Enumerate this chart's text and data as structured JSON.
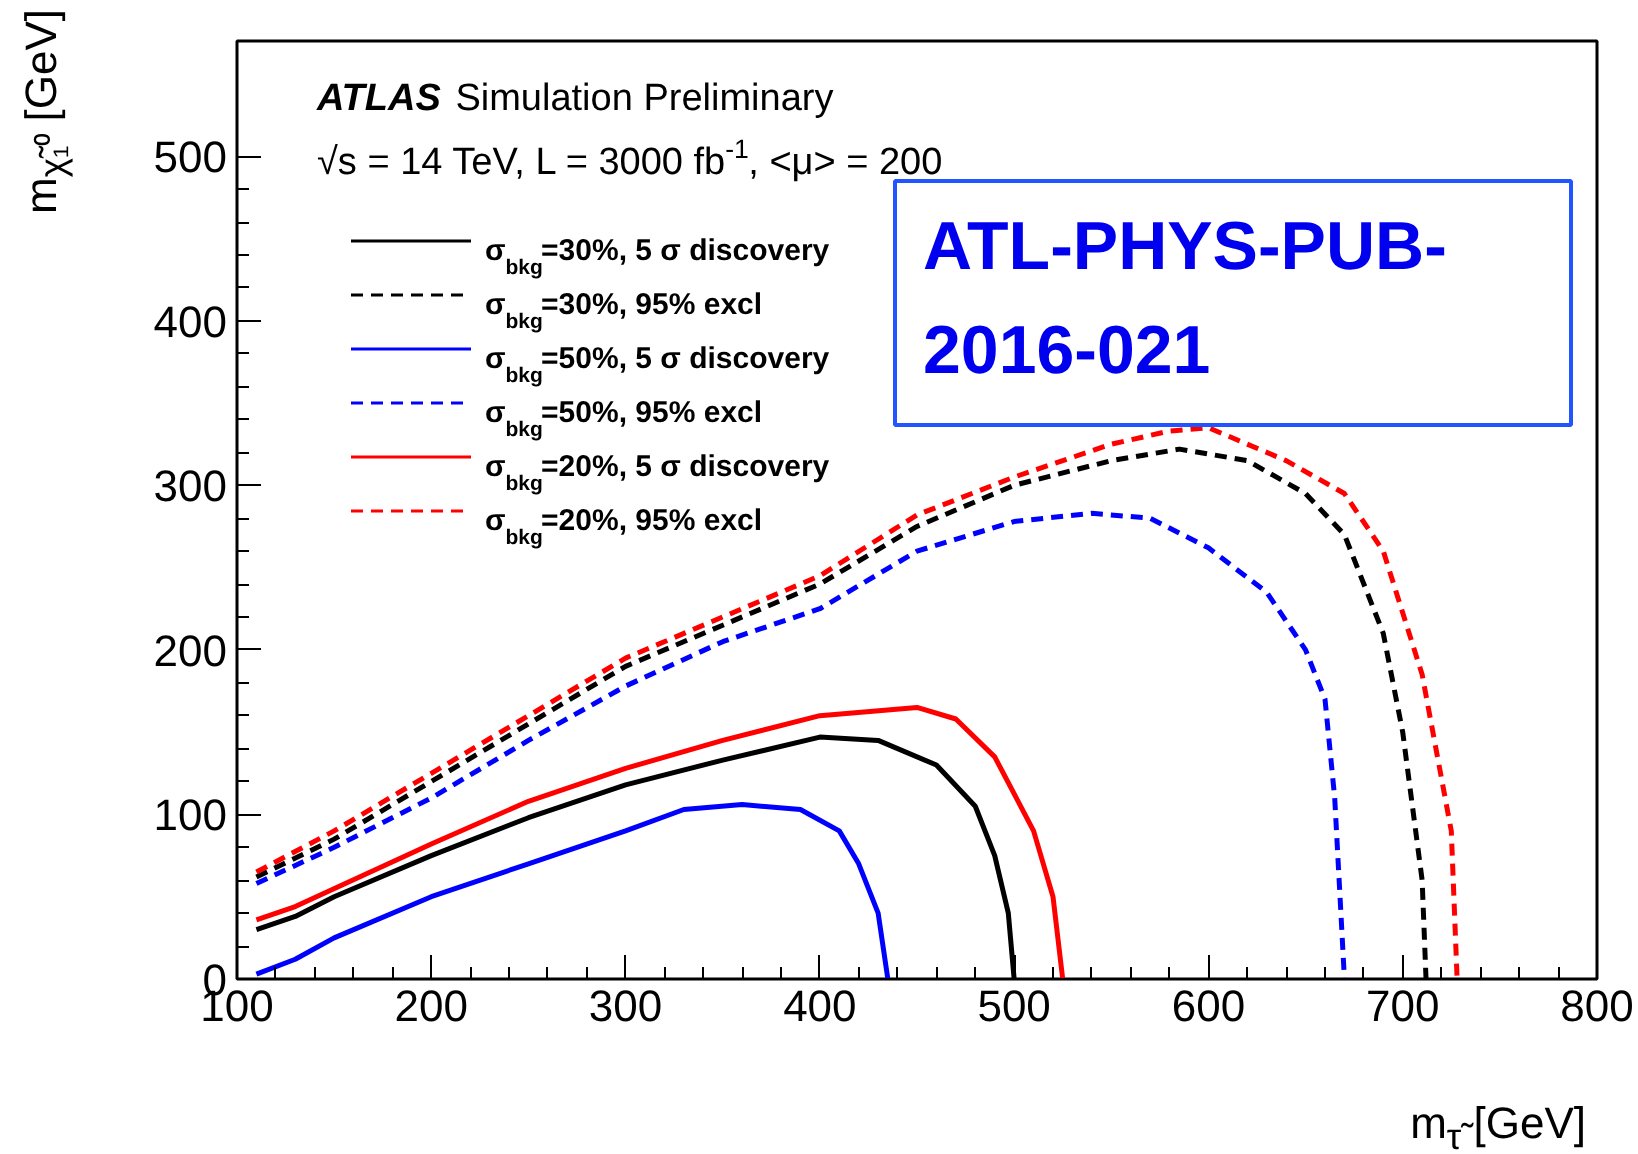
{
  "chart_data": {
    "type": "line",
    "title": "ATLAS Simulation Preliminary",
    "subtitle": "√s = 14 TeV, L = 3000 fb$^{-1}$, <μ> = 200",
    "xlabel": "m$_{τ̃}$ [GeV]",
    "ylabel": "m$_{χ̃₁⁰}$ [GeV]",
    "annotations": [
      "ATL-PHYS-PUB-2016-021"
    ],
    "xlim": [
      100,
      800
    ],
    "ylim": [
      0,
      570
    ],
    "xticks": [
      100,
      200,
      300,
      400,
      500,
      600,
      700,
      800
    ],
    "yticks": [
      0,
      100,
      200,
      300,
      400,
      500
    ],
    "grid": false,
    "legend": "top left",
    "marker": "none",
    "series": [
      {
        "name": "σ$_{bkg}$=30%, 5 σ discovery",
        "color": "#000000",
        "line_style": "solid",
        "x": [
          110,
          130,
          150,
          200,
          250,
          300,
          350,
          400,
          430,
          460,
          480,
          490,
          497,
          500
        ],
        "values": [
          30,
          38,
          50,
          75,
          98,
          118,
          133,
          147,
          145,
          130,
          105,
          75,
          40,
          0
        ]
      },
      {
        "name": "σ$_{bkg}$=30%, 95% excl",
        "color": "#000000",
        "line_style": "dashed",
        "x": [
          110,
          150,
          200,
          250,
          300,
          350,
          400,
          450,
          500,
          550,
          585,
          620,
          650,
          670,
          690,
          700,
          710,
          712
        ],
        "values": [
          62,
          85,
          120,
          155,
          190,
          215,
          240,
          275,
          300,
          315,
          322,
          315,
          295,
          270,
          210,
          150,
          60,
          0
        ]
      },
      {
        "name": "σ$_{bkg}$=50%, 5 σ discovery",
        "color": "#0000ff",
        "line_style": "solid",
        "x": [
          110,
          130,
          150,
          200,
          250,
          300,
          330,
          360,
          390,
          410,
          420,
          430,
          435
        ],
        "values": [
          3,
          12,
          25,
          50,
          70,
          90,
          103,
          106,
          103,
          90,
          70,
          40,
          0
        ]
      },
      {
        "name": "σ$_{bkg}$=50%, 95% excl",
        "color": "#0000ff",
        "line_style": "dashed",
        "x": [
          110,
          150,
          200,
          250,
          300,
          350,
          400,
          450,
          500,
          540,
          570,
          600,
          630,
          650,
          660,
          665,
          670
        ],
        "values": [
          58,
          80,
          110,
          145,
          178,
          205,
          225,
          260,
          278,
          283,
          280,
          262,
          235,
          200,
          170,
          110,
          0
        ]
      },
      {
        "name": "σ$_{bkg}$=20%, 5 σ discovery",
        "color": "#ff0000",
        "line_style": "solid",
        "x": [
          110,
          130,
          200,
          250,
          300,
          350,
          400,
          450,
          470,
          490,
          510,
          520,
          525
        ],
        "values": [
          36,
          44,
          82,
          108,
          128,
          145,
          160,
          165,
          158,
          135,
          90,
          50,
          0
        ]
      },
      {
        "name": "σ$_{bkg}$=20%, 95% excl",
        "color": "#ff0000",
        "line_style": "dashed",
        "x": [
          110,
          150,
          200,
          250,
          300,
          350,
          400,
          450,
          500,
          550,
          580,
          600,
          640,
          670,
          690,
          710,
          725,
          728
        ],
        "values": [
          65,
          90,
          125,
          160,
          195,
          220,
          245,
          282,
          305,
          325,
          333,
          335,
          315,
          295,
          260,
          185,
          90,
          0
        ]
      }
    ]
  }
}
